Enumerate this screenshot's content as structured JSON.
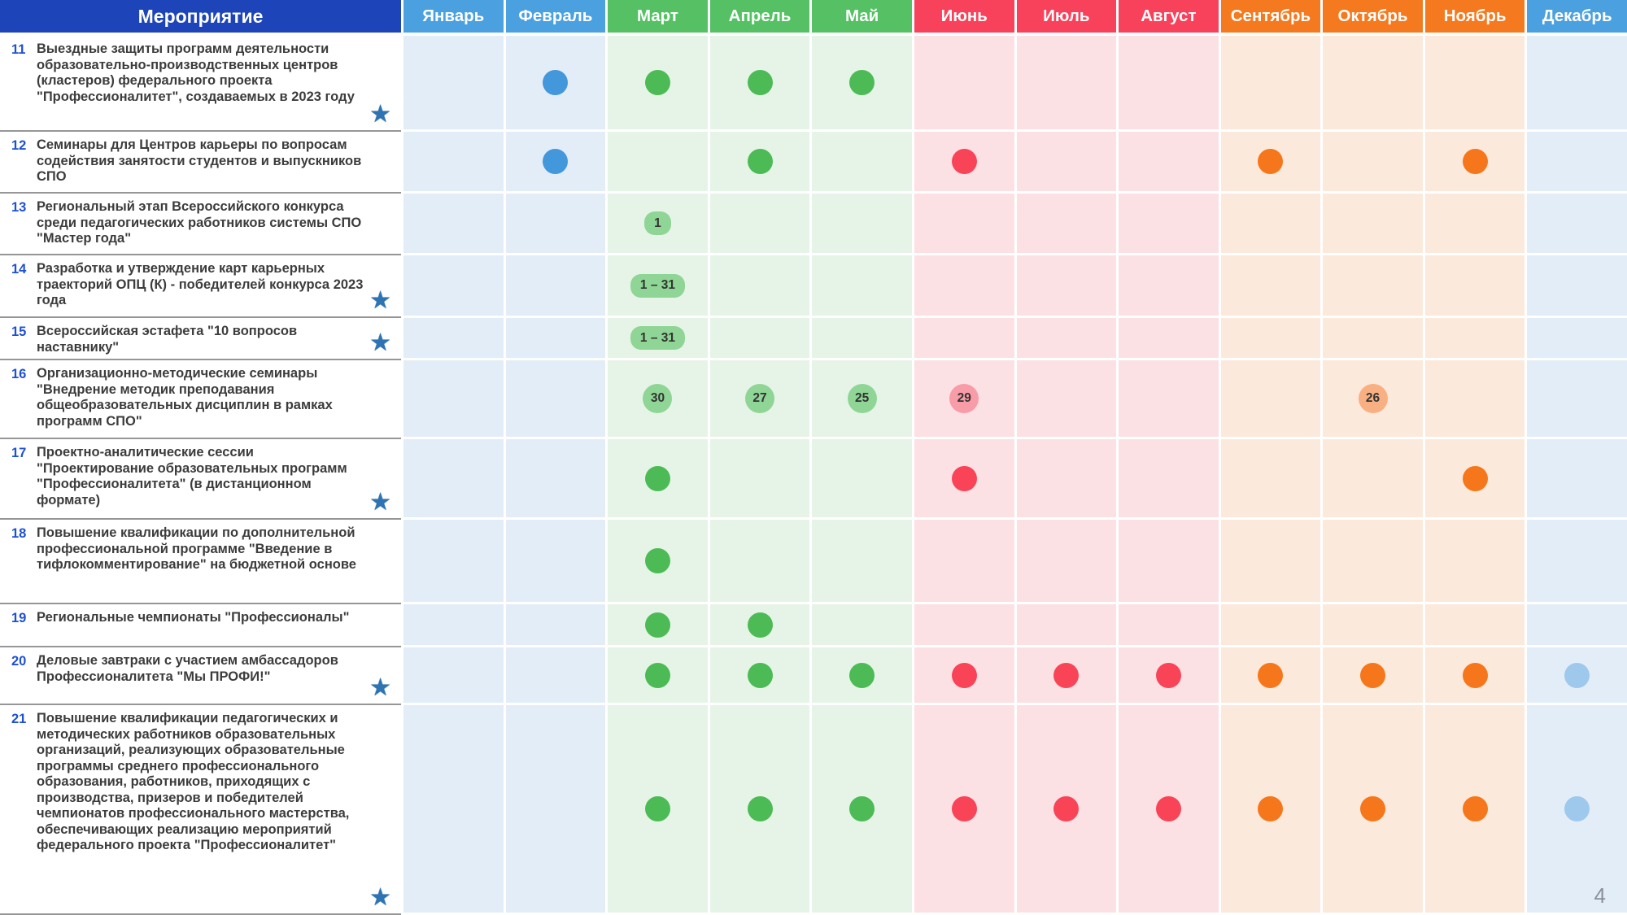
{
  "header": {
    "event_column_title": "Мероприятие"
  },
  "months": [
    {
      "label": "Январь",
      "group": "blue"
    },
    {
      "label": "Февраль",
      "group": "blue"
    },
    {
      "label": "Март",
      "group": "green"
    },
    {
      "label": "Апрель",
      "group": "green"
    },
    {
      "label": "Май",
      "group": "green"
    },
    {
      "label": "Июнь",
      "group": "red"
    },
    {
      "label": "Июль",
      "group": "red"
    },
    {
      "label": "Август",
      "group": "red"
    },
    {
      "label": "Сентябрь",
      "group": "orange"
    },
    {
      "label": "Октябрь",
      "group": "orange"
    },
    {
      "label": "Ноябрь",
      "group": "orange"
    },
    {
      "label": "Декабрь",
      "group": "dec"
    }
  ],
  "colors": {
    "event_header_bg": "#1D44B8",
    "month_blue": "#4BA0DF",
    "month_green": "#55C164",
    "month_red": "#F8415A",
    "month_orange": "#F5791E",
    "cell_blue": "#E3EDF8",
    "cell_green": "#E6F4E7",
    "cell_red": "#FBE1E4",
    "cell_orange": "#FBE9DC",
    "dot_blue": "#4397DB",
    "dot_green": "#4CBB55",
    "dot_red": "#F94457",
    "dot_orange": "#F6771B",
    "dot_lightblue": "#9EC9ED",
    "badge_green": "#8FD595",
    "badge_red": "#F89CA8",
    "badge_orange": "#F8B083",
    "star": "#2E74B5"
  },
  "rows": [
    {
      "num": "11",
      "text": "Выездные защиты программ деятельности образовательно-производственных центров (кластеров) федерального проекта \"Профессионалитет\", создаваемых в 2023 году",
      "star": true,
      "markers": [
        null,
        {
          "type": "dot",
          "color": "blue"
        },
        {
          "type": "dot",
          "color": "green"
        },
        {
          "type": "dot",
          "color": "green"
        },
        {
          "type": "dot",
          "color": "green"
        },
        null,
        null,
        null,
        null,
        null,
        null,
        null
      ]
    },
    {
      "num": "12",
      "text": "Семинары для Центров карьеры по вопросам содействия занятости студентов и выпускников СПО",
      "star": false,
      "markers": [
        null,
        {
          "type": "dot",
          "color": "blue"
        },
        null,
        {
          "type": "dot",
          "color": "green"
        },
        null,
        {
          "type": "dot",
          "color": "red"
        },
        null,
        null,
        {
          "type": "dot",
          "color": "orange"
        },
        null,
        {
          "type": "dot",
          "color": "orange"
        },
        null
      ]
    },
    {
      "num": "13",
      "text": "Региональный этап Всероссийского конкурса среди педагогических работников системы СПО \"Мастер года\"",
      "star": false,
      "markers": [
        null,
        null,
        {
          "type": "pill",
          "label": "1"
        },
        null,
        null,
        null,
        null,
        null,
        null,
        null,
        null,
        null
      ]
    },
    {
      "num": "14",
      "text": "Разработка и утверждение карт карьерных траекторий ОПЦ (К) - победителей конкурса 2023 года",
      "star": true,
      "markers": [
        null,
        null,
        {
          "type": "pill",
          "label": "1 – 31"
        },
        null,
        null,
        null,
        null,
        null,
        null,
        null,
        null,
        null
      ]
    },
    {
      "num": "15",
      "text": "Всероссийская эстафета \"10 вопросов наставнику\"",
      "star": true,
      "markers": [
        null,
        null,
        {
          "type": "pill",
          "label": "1 – 31"
        },
        null,
        null,
        null,
        null,
        null,
        null,
        null,
        null,
        null
      ]
    },
    {
      "num": "16",
      "text": "Организационно-методические семинары \"Внедрение методик преподавания общеобразовательных дисциплин в рамках программ СПО\"",
      "star": false,
      "markers": [
        null,
        null,
        {
          "type": "badge",
          "label": "30",
          "color": "green"
        },
        {
          "type": "badge",
          "label": "27",
          "color": "green"
        },
        {
          "type": "badge",
          "label": "25",
          "color": "green"
        },
        {
          "type": "badge",
          "label": "29",
          "color": "red"
        },
        null,
        null,
        null,
        {
          "type": "badge",
          "label": "26",
          "color": "orange"
        },
        null,
        null
      ]
    },
    {
      "num": "17",
      "text": "Проектно-аналитические сессии \"Проектирование образовательных программ \"Профессионалитета\" (в дистанционном формате)",
      "star": true,
      "markers": [
        null,
        null,
        {
          "type": "dot",
          "color": "green"
        },
        null,
        null,
        {
          "type": "dot",
          "color": "red"
        },
        null,
        null,
        null,
        null,
        {
          "type": "dot",
          "color": "orange"
        },
        null
      ]
    },
    {
      "num": "18",
      "text": "Повышение квалификации по дополнительной профессиональной программе \"Введение в тифлокомментирование\" на бюджетной основе",
      "star": false,
      "markers": [
        null,
        null,
        {
          "type": "dot",
          "color": "green"
        },
        null,
        null,
        null,
        null,
        null,
        null,
        null,
        null,
        null
      ]
    },
    {
      "num": "19",
      "text": "Региональные чемпионаты \"Профессионалы\"",
      "star": false,
      "markers": [
        null,
        null,
        {
          "type": "dot",
          "color": "green"
        },
        {
          "type": "dot",
          "color": "green"
        },
        null,
        null,
        null,
        null,
        null,
        null,
        null,
        null
      ]
    },
    {
      "num": "20",
      "text": "Деловые завтраки с участием амбассадоров Профессионалитета \"Мы ПРОФИ!\"",
      "star": true,
      "markers": [
        null,
        null,
        {
          "type": "dot",
          "color": "green"
        },
        {
          "type": "dot",
          "color": "green"
        },
        {
          "type": "dot",
          "color": "green"
        },
        {
          "type": "dot",
          "color": "red"
        },
        {
          "type": "dot",
          "color": "red"
        },
        {
          "type": "dot",
          "color": "red"
        },
        {
          "type": "dot",
          "color": "orange"
        },
        {
          "type": "dot",
          "color": "orange"
        },
        {
          "type": "dot",
          "color": "orange"
        },
        {
          "type": "dot",
          "color": "lightblue"
        }
      ]
    },
    {
      "num": "21",
      "text": "Повышение квалификации педагогических и методических работников образовательных организаций, реализующих образовательные программы среднего профессионального образования, работников, приходящих с производства, призеров и победителей чемпионатов профессионального мастерства, обеспечивающих реализацию мероприятий федерального проекта \"Профессионалитет\"",
      "star": true,
      "markers": [
        null,
        null,
        {
          "type": "dot",
          "color": "green"
        },
        {
          "type": "dot",
          "color": "green"
        },
        {
          "type": "dot",
          "color": "green"
        },
        {
          "type": "dot",
          "color": "red"
        },
        {
          "type": "dot",
          "color": "red"
        },
        {
          "type": "dot",
          "color": "red"
        },
        {
          "type": "dot",
          "color": "orange"
        },
        {
          "type": "dot",
          "color": "orange"
        },
        {
          "type": "dot",
          "color": "orange"
        },
        {
          "type": "dot",
          "color": "lightblue"
        }
      ]
    }
  ],
  "page_number": "4",
  "icons": {
    "star_icon": "★"
  }
}
